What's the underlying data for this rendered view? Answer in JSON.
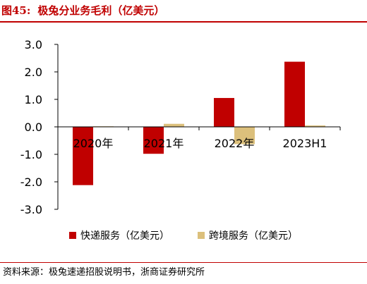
{
  "header": {
    "prefix": "图45:",
    "title": "极兔分业务毛利（亿美元）"
  },
  "chart_data": {
    "type": "bar",
    "categories": [
      "2020年",
      "2021年",
      "2022年",
      "2023H1"
    ],
    "series": [
      {
        "name": "快递服务（亿美元）",
        "values": [
          -2.12,
          -0.98,
          1.05,
          2.37
        ],
        "color": "#c00000"
      },
      {
        "name": "跨境服务（亿美元）",
        "values": [
          0.02,
          0.11,
          -0.63,
          0.05
        ],
        "color": "#dcc07c"
      }
    ],
    "ylim": [
      -3.0,
      3.0
    ],
    "yticks": [
      "3.0",
      "2.0",
      "1.0",
      "0.0",
      "-1.0",
      "-2.0",
      "-3.0"
    ],
    "ytick_values": [
      3,
      2,
      1,
      0,
      -1,
      -2,
      -3
    ],
    "grid": false,
    "legend_position": "bottom"
  },
  "footer": {
    "source": "资料来源：极兔速递招股说明书，浙商证券研究所"
  }
}
